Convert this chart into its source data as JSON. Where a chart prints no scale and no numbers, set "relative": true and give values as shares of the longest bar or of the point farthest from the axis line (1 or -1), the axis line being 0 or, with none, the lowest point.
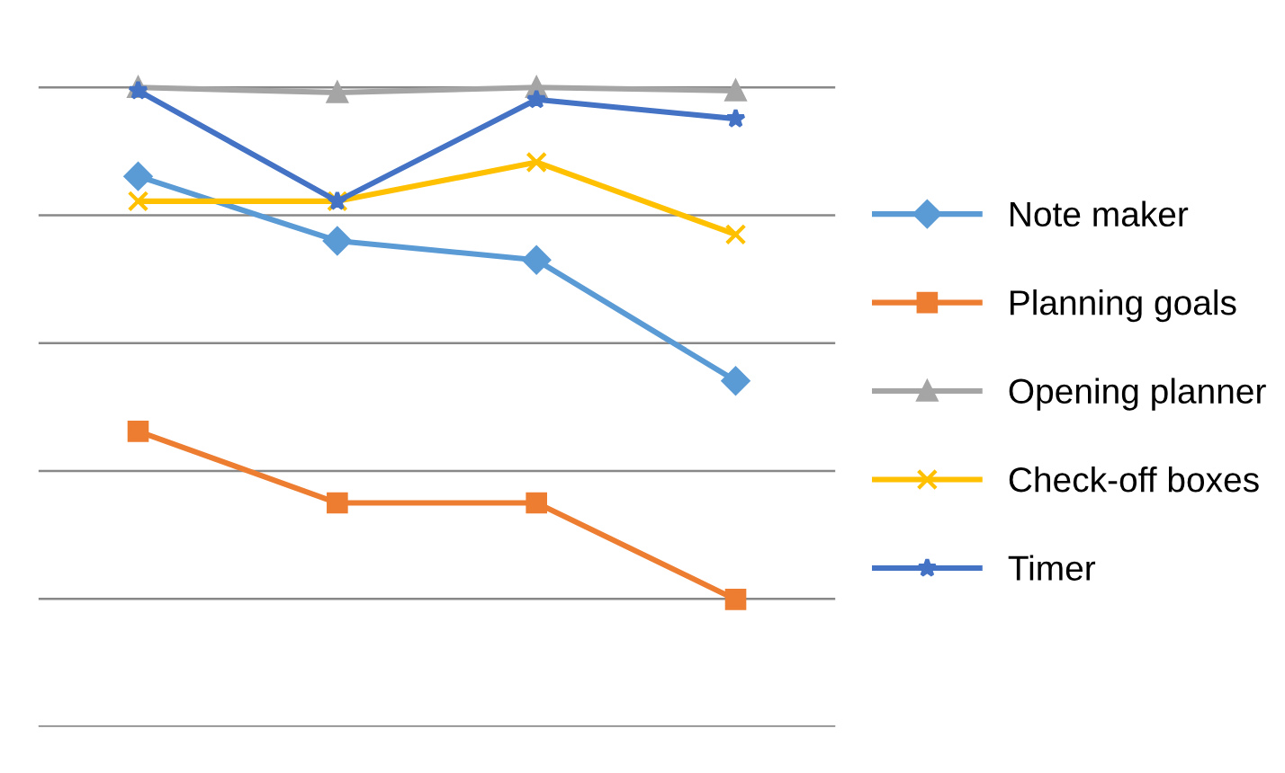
{
  "chart_data": {
    "type": "line",
    "relative": true,
    "categories": [
      null,
      null,
      null,
      null
    ],
    "grid": "y",
    "legend": "right",
    "line_style": "solid",
    "series": [
      {
        "name": "Note maker",
        "color": "#5b9bd5",
        "marker": "diamond",
        "values": [
          0.861,
          0.76,
          0.73,
          0.541
        ]
      },
      {
        "name": "Planning goals",
        "color": "#ed7d31",
        "marker": "square",
        "values": [
          0.462,
          0.35,
          0.35,
          0.199
        ]
      },
      {
        "name": "Opening planner",
        "color": "#a5a5a5",
        "marker": "triangle",
        "values": [
          1.0,
          0.992,
          1.0,
          0.995
        ]
      },
      {
        "name": "Check-off boxes",
        "color": "#ffc000",
        "marker": "cross",
        "values": [
          0.822,
          0.822,
          0.883,
          0.77
        ]
      },
      {
        "name": "Timer",
        "color": "#4472c4",
        "marker": "star",
        "values": [
          0.995,
          0.822,
          0.981,
          0.951
        ]
      }
    ]
  }
}
